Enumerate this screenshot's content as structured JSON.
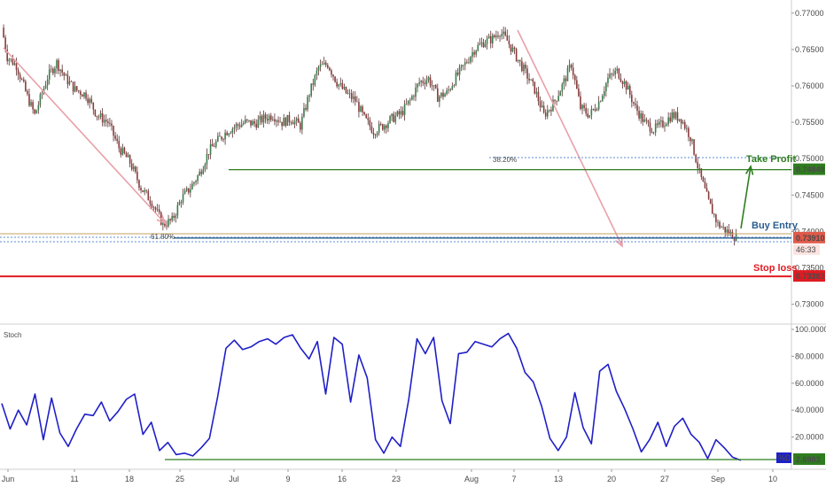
{
  "chart_data": [
    {
      "type": "candlestick",
      "x_ticks": [
        "Jun",
        "11",
        "18",
        "25",
        "Jul",
        "9",
        "16",
        "23",
        "Aug",
        "7",
        "13",
        "20",
        "27",
        "Sep",
        "10"
      ],
      "y_ticks": [
        "0.77000",
        "0.76500",
        "0.76000",
        "0.75500",
        "0.75000",
        "0.74500",
        "0.74000",
        "0.73500",
        "0.73000"
      ],
      "ylim": [
        0.7274,
        0.7718
      ],
      "close_path": [
        [
          0,
          0.768
        ],
        [
          3,
          0.764
        ],
        [
          8,
          0.7628
        ],
        [
          14,
          0.7585
        ],
        [
          18,
          0.756
        ],
        [
          25,
          0.7612
        ],
        [
          30,
          0.7632
        ],
        [
          35,
          0.761
        ],
        [
          40,
          0.7595
        ],
        [
          46,
          0.7588
        ],
        [
          52,
          0.756
        ],
        [
          58,
          0.755
        ],
        [
          64,
          0.7515
        ],
        [
          70,
          0.7495
        ],
        [
          76,
          0.746
        ],
        [
          82,
          0.744
        ],
        [
          88,
          0.741
        ],
        [
          93,
          0.7415
        ],
        [
          98,
          0.7445
        ],
        [
          103,
          0.746
        ],
        [
          108,
          0.748
        ],
        [
          113,
          0.751
        ],
        [
          118,
          0.7525
        ],
        [
          123,
          0.7538
        ],
        [
          128,
          0.7545
        ],
        [
          133,
          0.755
        ],
        [
          138,
          0.7548
        ],
        [
          143,
          0.7555
        ],
        [
          148,
          0.756
        ],
        [
          153,
          0.755
        ],
        [
          158,
          0.7555
        ],
        [
          163,
          0.7545
        ],
        [
          168,
          0.759
        ],
        [
          173,
          0.7625
        ],
        [
          178,
          0.763
        ],
        [
          183,
          0.7605
        ],
        [
          188,
          0.759
        ],
        [
          193,
          0.758
        ],
        [
          198,
          0.7555
        ],
        [
          203,
          0.7538
        ],
        [
          208,
          0.7545
        ],
        [
          213,
          0.7555
        ],
        [
          218,
          0.7562
        ],
        [
          223,
          0.758
        ],
        [
          228,
          0.7605
        ],
        [
          233,
          0.761
        ],
        [
          238,
          0.7585
        ],
        [
          243,
          0.759
        ],
        [
          248,
          0.7612
        ],
        [
          253,
          0.763
        ],
        [
          258,
          0.765
        ],
        [
          263,
          0.766
        ],
        [
          268,
          0.7665
        ],
        [
          272,
          0.7675
        ],
        [
          276,
          0.7662
        ],
        [
          281,
          0.764
        ],
        [
          286,
          0.7618
        ],
        [
          291,
          0.7595
        ],
        [
          296,
          0.756
        ],
        [
          301,
          0.7575
        ],
        [
          306,
          0.76
        ],
        [
          311,
          0.763
        ],
        [
          316,
          0.757
        ],
        [
          321,
          0.756
        ],
        [
          326,
          0.7578
        ],
        [
          331,
          0.761
        ],
        [
          336,
          0.762
        ],
        [
          341,
          0.76
        ],
        [
          346,
          0.757
        ],
        [
          351,
          0.755
        ],
        [
          356,
          0.754
        ],
        [
          361,
          0.7548
        ],
        [
          366,
          0.756
        ],
        [
          371,
          0.7555
        ],
        [
          376,
          0.753
        ],
        [
          381,
          0.748
        ],
        [
          386,
          0.744
        ],
        [
          391,
          0.741
        ],
        [
          396,
          0.74
        ],
        [
          401,
          0.7392
        ]
      ],
      "series": [
        {
          "name": "%D",
          "values": [
            45,
            26,
            40,
            29,
            52,
            18,
            49,
            23,
            13,
            26,
            37,
            36,
            46,
            32,
            39,
            48,
            52,
            22,
            31,
            10,
            16,
            7,
            8,
            6,
            12,
            19,
            50,
            86,
            92,
            85,
            87,
            91,
            93,
            89,
            94,
            96,
            86,
            78,
            91,
            52,
            94,
            89,
            46,
            81,
            64,
            18,
            8,
            20,
            13,
            48,
            93,
            82,
            94,
            47,
            30,
            82,
            83,
            91,
            89,
            87,
            93,
            97,
            86,
            68,
            61,
            43,
            19,
            10,
            20,
            53,
            27,
            15,
            69,
            74,
            54,
            41,
            26,
            9,
            18,
            31,
            13,
            28,
            34,
            22,
            16,
            4,
            18,
            12,
            5,
            2.7
          ]
        }
      ],
      "y2_ticks": [
        "100.0000",
        "80.0000",
        "60.0000",
        "40.0000",
        "20.0000"
      ],
      "y2lim": [
        0,
        100
      ],
      "annotations": {
        "take_profit": {
          "label": "Take Profit",
          "price": "0.74849"
        },
        "buy_entry": {
          "label": "Buy Entry",
          "price": "0.73910"
        },
        "stop_loss": {
          "label": "Stop loss",
          "price": "0.73383"
        },
        "fib_382": "38.20%",
        "fib_618": "61.80%",
        "countdown": "46:33",
        "indicator_name": "Stoch",
        "indicator_value": "2.6983",
        "indicator_tag": "%D"
      },
      "colors": {
        "up": "#3c7c4c",
        "down": "#8a3b3b",
        "wick": "#5a3030",
        "stoch": "#1f1fc8",
        "take_profit": "#2e7d1e",
        "buy_entry": "#2a5d8f",
        "stop_loss": "#e01b22",
        "fib": "#5b8cd6",
        "fib618": "#c8a060",
        "arrow_down": "#e8a0a8",
        "current_price": "#e05a4a"
      }
    }
  ]
}
